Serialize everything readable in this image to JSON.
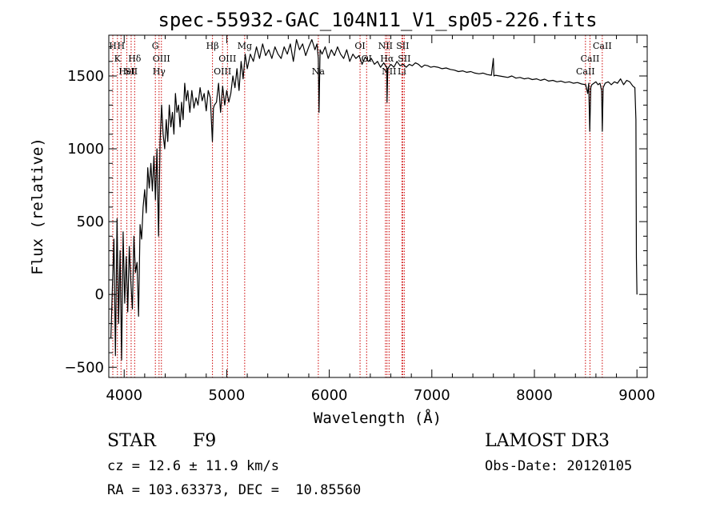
{
  "chart_data": {
    "type": "line",
    "title": "spec-55932-GAC_104N11_V1_sp05-226.fits",
    "xlabel": "Wavelength (Å)",
    "ylabel": "Flux (relative)",
    "xlim": [
      3850,
      9100
    ],
    "ylim": [
      -570,
      1780
    ],
    "x_ticks": [
      {
        "value": 4000,
        "label": "4000"
      },
      {
        "value": 5000,
        "label": "5000"
      },
      {
        "value": 6000,
        "label": "6000"
      },
      {
        "value": 7000,
        "label": "7000"
      },
      {
        "value": 8000,
        "label": "8000"
      },
      {
        "value": 9000,
        "label": "9000"
      }
    ],
    "y_ticks": [
      {
        "value": -500,
        "label": "−500"
      },
      {
        "value": 0,
        "label": "0"
      },
      {
        "value": 500,
        "label": "500"
      },
      {
        "value": 1000,
        "label": "1000"
      },
      {
        "value": 1500,
        "label": "1500"
      }
    ],
    "series": [
      {
        "name": "flux",
        "color": "#000000",
        "x": [
          3870,
          3885,
          3900,
          3915,
          3930,
          3945,
          3960,
          3975,
          3990,
          4005,
          4020,
          4035,
          4050,
          4065,
          4080,
          4095,
          4110,
          4125,
          4140,
          4155,
          4170,
          4185,
          4200,
          4215,
          4230,
          4245,
          4260,
          4275,
          4290,
          4305,
          4320,
          4335,
          4350,
          4365,
          4380,
          4395,
          4410,
          4425,
          4440,
          4455,
          4470,
          4485,
          4500,
          4515,
          4530,
          4545,
          4560,
          4575,
          4590,
          4605,
          4620,
          4640,
          4660,
          4680,
          4700,
          4720,
          4740,
          4760,
          4780,
          4800,
          4820,
          4840,
          4860,
          4870,
          4880,
          4900,
          4920,
          4940,
          4960,
          4980,
          5000,
          5020,
          5040,
          5060,
          5080,
          5100,
          5120,
          5140,
          5160,
          5180,
          5200,
          5230,
          5260,
          5290,
          5320,
          5350,
          5380,
          5410,
          5440,
          5470,
          5500,
          5530,
          5560,
          5590,
          5620,
          5650,
          5680,
          5710,
          5740,
          5770,
          5800,
          5830,
          5860,
          5880,
          5893,
          5900,
          5910,
          5930,
          5960,
          5990,
          6020,
          6050,
          6080,
          6110,
          6140,
          6170,
          6200,
          6230,
          6260,
          6290,
          6320,
          6350,
          6380,
          6410,
          6440,
          6470,
          6500,
          6530,
          6560,
          6563,
          6570,
          6600,
          6630,
          6660,
          6690,
          6720,
          6750,
          6780,
          6810,
          6840,
          6870,
          6900,
          6930,
          6960,
          6990,
          7020,
          7060,
          7100,
          7140,
          7180,
          7220,
          7260,
          7300,
          7340,
          7380,
          7420,
          7460,
          7500,
          7540,
          7580,
          7600,
          7605,
          7620,
          7660,
          7700,
          7740,
          7780,
          7820,
          7860,
          7900,
          7940,
          7980,
          8020,
          8060,
          8100,
          8140,
          8180,
          8220,
          8260,
          8300,
          8340,
          8380,
          8420,
          8460,
          8500,
          8520,
          8530,
          8540,
          8550,
          8560,
          8580,
          8600,
          8620,
          8640,
          8655,
          8662,
          8670,
          8690,
          8720,
          8750,
          8780,
          8810,
          8840,
          8870,
          8900,
          8930,
          8960,
          8980,
          8990,
          8995,
          9000
        ],
        "values": [
          -300,
          50,
          380,
          -420,
          520,
          -200,
          300,
          -450,
          430,
          -60,
          260,
          -120,
          330,
          80,
          -100,
          400,
          150,
          220,
          -150,
          480,
          380,
          600,
          720,
          560,
          870,
          730,
          900,
          710,
          950,
          650,
          1000,
          400,
          1050,
          1300,
          1100,
          1000,
          1200,
          1050,
          1300,
          1150,
          1250,
          1100,
          1380,
          1250,
          1300,
          1150,
          1320,
          1200,
          1450,
          1330,
          1400,
          1250,
          1400,
          1280,
          1350,
          1300,
          1420,
          1330,
          1380,
          1260,
          1400,
          1350,
          1050,
          1280,
          1300,
          1320,
          1450,
          1250,
          1430,
          1300,
          1400,
          1320,
          1380,
          1500,
          1420,
          1550,
          1400,
          1600,
          1480,
          1650,
          1550,
          1650,
          1600,
          1700,
          1620,
          1720,
          1640,
          1680,
          1620,
          1700,
          1650,
          1620,
          1700,
          1650,
          1720,
          1600,
          1750,
          1680,
          1720,
          1640,
          1700,
          1750,
          1680,
          1720,
          1620,
          1250,
          1680,
          1650,
          1700,
          1620,
          1680,
          1640,
          1700,
          1650,
          1620,
          1680,
          1600,
          1650,
          1620,
          1640,
          1580,
          1630,
          1600,
          1620,
          1580,
          1600,
          1560,
          1590,
          1560,
          1320,
          1550,
          1580,
          1560,
          1600,
          1570,
          1580,
          1560,
          1580,
          1570,
          1590,
          1580,
          1560,
          1575,
          1570,
          1560,
          1565,
          1560,
          1550,
          1555,
          1545,
          1540,
          1530,
          1535,
          1525,
          1530,
          1520,
          1515,
          1520,
          1510,
          1505,
          1620,
          1500,
          1505,
          1500,
          1495,
          1490,
          1500,
          1485,
          1490,
          1480,
          1485,
          1475,
          1480,
          1470,
          1478,
          1465,
          1470,
          1460,
          1465,
          1455,
          1460,
          1450,
          1455,
          1445,
          1440,
          1380,
          1450,
          1120,
          1420,
          1440,
          1450,
          1460,
          1440,
          1450,
          1400,
          1120,
          1420,
          1450,
          1460,
          1440,
          1460,
          1450,
          1480,
          1440,
          1470,
          1460,
          1430,
          1420,
          1200,
          250,
          0
        ]
      }
    ],
    "lines": [
      {
        "x": 3889,
        "labels": [
          "H"
        ],
        "row": 0
      },
      {
        "x": 3934,
        "labels": [
          "K"
        ],
        "row": 1
      },
      {
        "x": 3969,
        "labels": [
          "H"
        ],
        "row": 0
      },
      {
        "x": 4026,
        "labels": [
          "HeI"
        ],
        "row": 2
      },
      {
        "x": 4068,
        "labels": [
          "SII"
        ],
        "row": 2
      },
      {
        "x": 4102,
        "labels": [
          "Hδ"
        ],
        "row": 1
      },
      {
        "x": 4304,
        "labels": [
          "G"
        ],
        "row": 0
      },
      {
        "x": 4340,
        "labels": [
          "Hγ"
        ],
        "row": 2
      },
      {
        "x": 4363,
        "labels": [
          "OIII"
        ],
        "row": 1
      },
      {
        "x": 4861,
        "labels": [
          "Hβ"
        ],
        "row": 0
      },
      {
        "x": 4959,
        "labels": [
          "OIII"
        ],
        "row": 2
      },
      {
        "x": 5007,
        "labels": [
          "OIII"
        ],
        "row": 1
      },
      {
        "x": 5175,
        "labels": [
          "Mg"
        ],
        "row": 0
      },
      {
        "x": 5893,
        "labels": [
          "Na"
        ],
        "row": 2
      },
      {
        "x": 6300,
        "labels": [
          "OI"
        ],
        "row": 0
      },
      {
        "x": 6364,
        "labels": [
          "OI"
        ],
        "row": 1
      },
      {
        "x": 6548,
        "labels": [
          "NII"
        ],
        "row": 0
      },
      {
        "x": 6563,
        "labels": [
          "Hα"
        ],
        "row": 1
      },
      {
        "x": 6583,
        "labels": [
          "NII"
        ],
        "row": 2
      },
      {
        "x": 6716,
        "labels": [
          "SII"
        ],
        "row": 0
      },
      {
        "x": 6708,
        "labels": [
          "Li"
        ],
        "row": 2
      },
      {
        "x": 6731,
        "labels": [
          "SII"
        ],
        "row": 1
      },
      {
        "x": 8498,
        "labels": [
          "CaII"
        ],
        "row": 2
      },
      {
        "x": 8542,
        "labels": [
          "CaII"
        ],
        "row": 1
      },
      {
        "x": 8662,
        "labels": [
          "CaII"
        ],
        "row": 0
      }
    ]
  },
  "info": {
    "class": "STAR",
    "subclass": "F9",
    "survey": "LAMOST DR3",
    "cz": "cz = 12.6 ± 11.9 km/s",
    "obs_date": "Obs-Date: 20120105",
    "coords": "RA = 103.63373, DEC =  10.85560"
  },
  "colors": {
    "line_marker": "#cc0000",
    "axis": "#000000"
  }
}
